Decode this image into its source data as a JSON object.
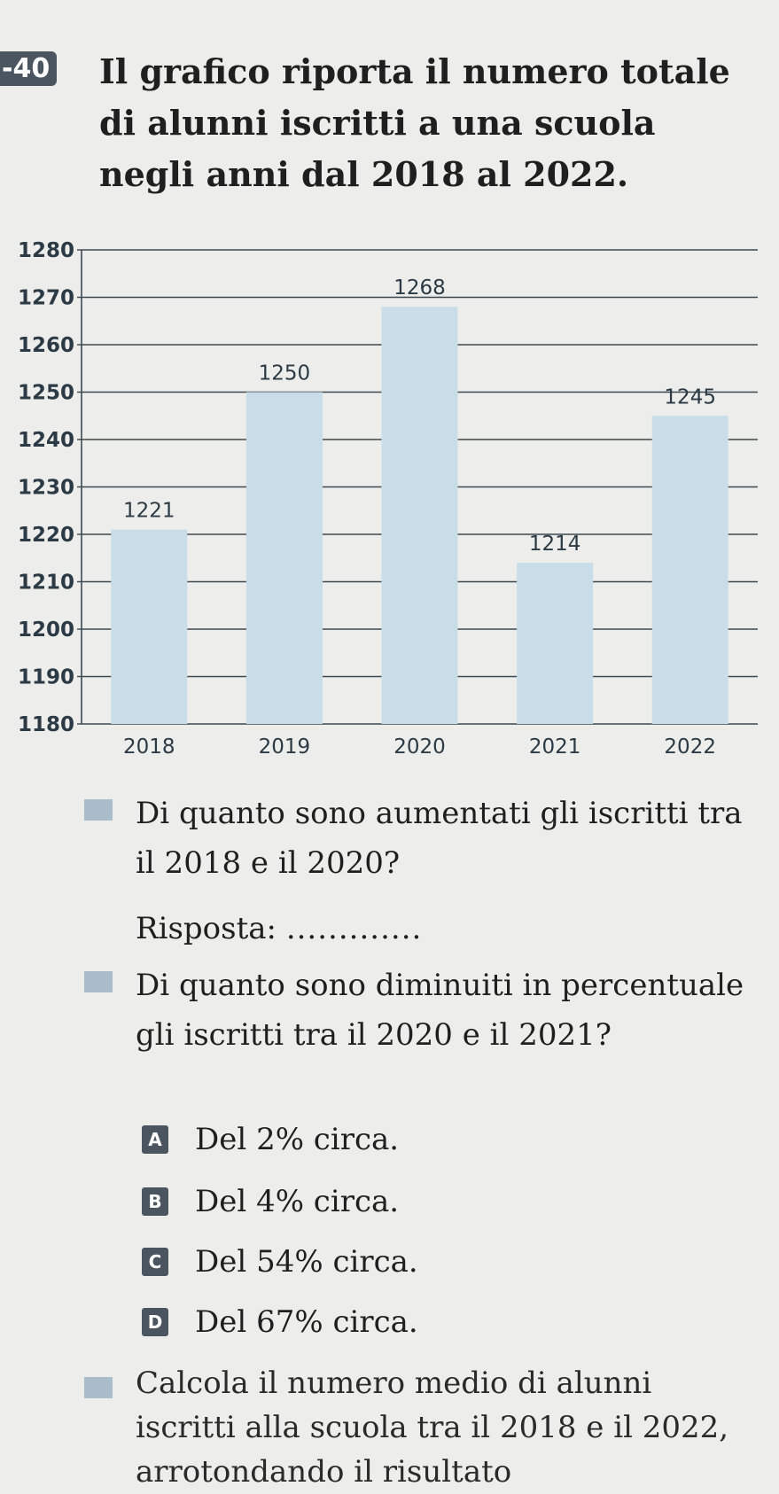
{
  "exercise_number": "-40",
  "intro_text": "Il grafico riporta il numero totale di alunni iscritti a una scuola negli anni dal 2018 al 2022.",
  "chart_data": {
    "type": "bar",
    "categories": [
      "2018",
      "2019",
      "2020",
      "2021",
      "2022"
    ],
    "values": [
      1221,
      1250,
      1268,
      1214,
      1245
    ],
    "value_labels": [
      "1221",
      "1250",
      "1268",
      "1214",
      "1245"
    ],
    "ylim": [
      1180,
      1280
    ],
    "yticks": [
      1180,
      1190,
      1200,
      1210,
      1220,
      1230,
      1240,
      1250,
      1260,
      1270,
      1280
    ],
    "ytick_labels": [
      "1180",
      "1190",
      "1200",
      "1210",
      "1220",
      "1230",
      "1240",
      "1250",
      "1260",
      "1270",
      "1280"
    ],
    "grid": true,
    "bar_color": "#c9dde8",
    "grid_color": "#3c4850"
  },
  "questions": [
    {
      "text": "Di quanto sono aumentati gli iscritti tra il 2018 e il 2020?",
      "answer_label": "Risposta:",
      "answer_blank": "............."
    },
    {
      "text": "Di quanto sono diminuiti in percentuale gli iscritti tra il 2020 e il 2021?",
      "options": [
        {
          "letter": "A",
          "text": "Del 2% circa."
        },
        {
          "letter": "B",
          "text": "Del 4% circa."
        },
        {
          "letter": "C",
          "text": "Del 54% circa."
        },
        {
          "letter": "D",
          "text": "Del 67% circa."
        }
      ]
    },
    {
      "text": "Calcola il numero medio di alunni iscritti alla scuola tra il 2018 e il 2022, arrotondando il risultato"
    }
  ]
}
